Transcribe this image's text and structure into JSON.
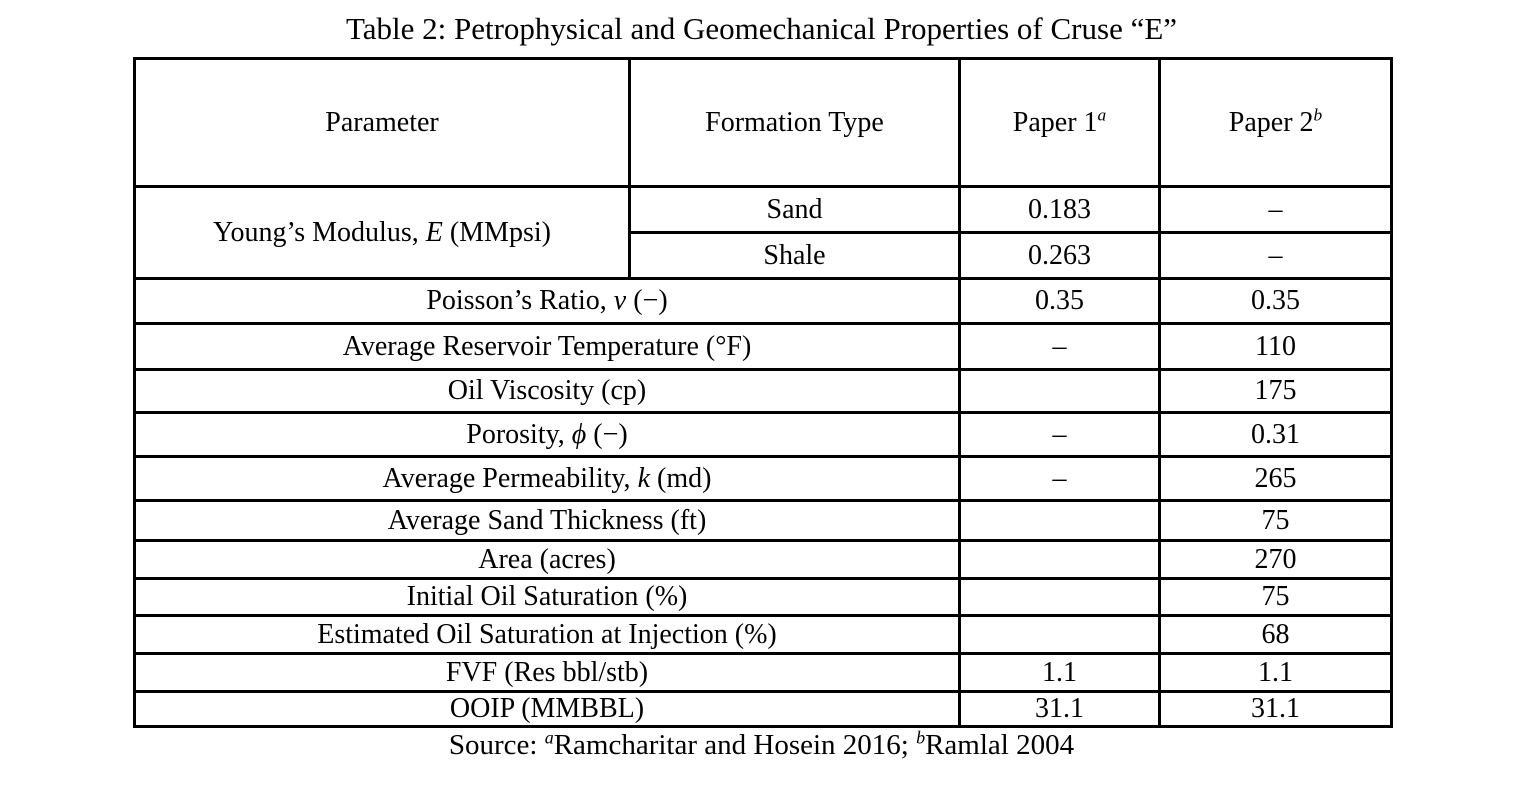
{
  "page": {
    "background_color": "#ffffff",
    "text_color": "#000000",
    "border_color": "#000000"
  },
  "title": "Table 2: Petrophysical and Geomechanical Properties of Cruse “E”",
  "table": {
    "header": [
      {
        "text": "Parameter",
        "sup": ""
      },
      {
        "text": "Formation Type",
        "sup": ""
      },
      {
        "text": "Paper 1",
        "sup": "a"
      },
      {
        "text": "Paper 2",
        "sup": "b"
      }
    ],
    "grouped_row": {
      "label": [
        "Young’s Modulus, ",
        {
          "i": "E"
        },
        " (MMpsi)"
      ],
      "sub_rows": [
        {
          "formation": "Sand",
          "paper1": "0.183",
          "paper2": "–"
        },
        {
          "formation": "Shale",
          "paper1": "0.263",
          "paper2": "–"
        }
      ]
    },
    "rows": [
      {
        "label": [
          "Poisson’s Ratio, ",
          {
            "i": "ν"
          },
          " (−)"
        ],
        "paper1": "0.35",
        "paper2": "0.35"
      },
      {
        "label": [
          "Average Reservoir Temperature (°F)"
        ],
        "paper1": "–",
        "paper2": "110"
      },
      {
        "label": [
          "Oil Viscosity (cp)"
        ],
        "paper1": "",
        "paper2": "175"
      },
      {
        "label": [
          "Porosity, ",
          {
            "i": "ϕ"
          },
          " (−)"
        ],
        "paper1": "–",
        "paper2": "0.31"
      },
      {
        "label": [
          "Average Permeability, ",
          {
            "i": "k"
          },
          " (md)"
        ],
        "paper1": "–",
        "paper2": "265"
      },
      {
        "label": [
          "Average Sand Thickness (ft)"
        ],
        "paper1": "",
        "paper2": "75"
      },
      {
        "label": [
          "Area (acres)"
        ],
        "paper1": "",
        "paper2": "270"
      },
      {
        "label": [
          "Initial Oil Saturation (%)"
        ],
        "paper1": "",
        "paper2": "75"
      },
      {
        "label": [
          "Estimated Oil Saturation at Injection (%)"
        ],
        "paper1": "",
        "paper2": "68"
      },
      {
        "label": [
          "FVF (Res bbl/stb)"
        ],
        "paper1": "1.1",
        "paper2": "1.1"
      },
      {
        "label": [
          "OOIP (MMBBL)"
        ],
        "paper1": "31.1",
        "paper2": "31.1"
      }
    ]
  },
  "source": {
    "prefix": "Source: ",
    "refs": [
      {
        "sup": "a",
        "text": "Ramcharitar and Hosein 2016; "
      },
      {
        "sup": "b",
        "text": "Ramlal 2004"
      }
    ]
  }
}
